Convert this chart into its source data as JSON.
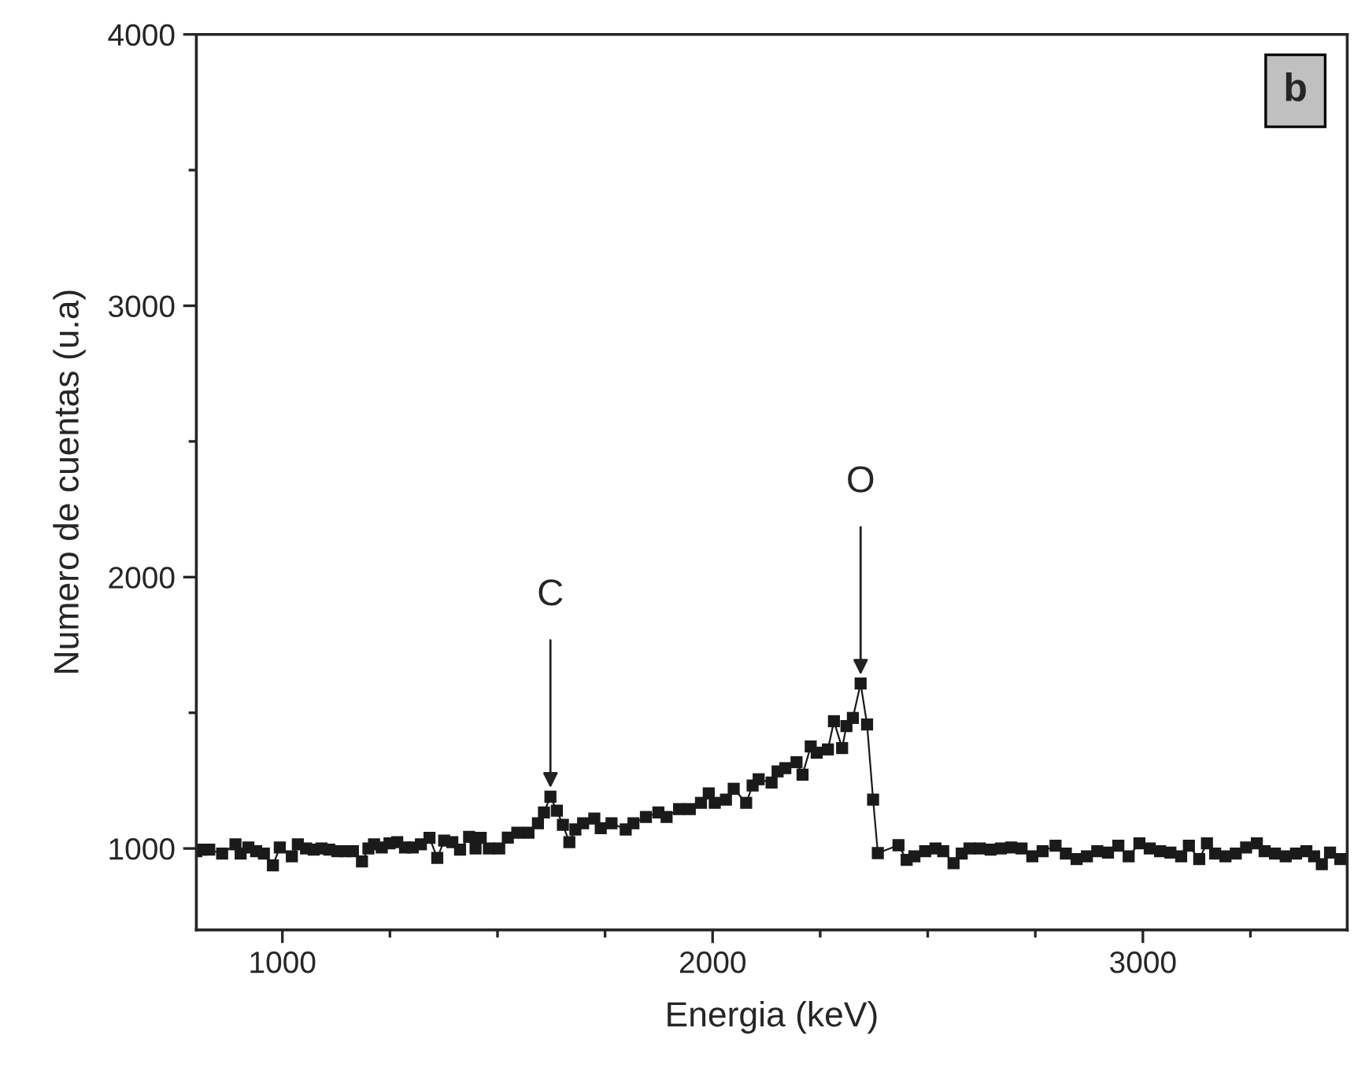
{
  "chart_data": {
    "type": "line",
    "xlabel": "Energia (keV)",
    "ylabel": "Numero de cuentas (u.a)",
    "x": [
      800,
      812,
      830,
      860,
      891,
      903,
      921,
      939,
      957,
      978,
      994,
      1022,
      1036,
      1055,
      1073,
      1091,
      1109,
      1128,
      1146,
      1164,
      1185,
      1200,
      1213,
      1231,
      1249,
      1267,
      1285,
      1303,
      1322,
      1342,
      1360,
      1376,
      1395,
      1413,
      1434,
      1449,
      1461,
      1480,
      1504,
      1524,
      1546,
      1572,
      1594,
      1608,
      1623,
      1638,
      1652,
      1667,
      1681,
      1699,
      1725,
      1740,
      1765,
      1798,
      1816,
      1845,
      1874,
      1893,
      1922,
      1947,
      1973,
      1991,
      2005,
      2031,
      2049,
      2078,
      2093,
      2107,
      2137,
      2151,
      2169,
      2195,
      2209,
      2228,
      2242,
      2268,
      2282,
      2301,
      2311,
      2326,
      2344,
      2359,
      2373,
      2384,
      2432,
      2451,
      2469,
      2494,
      2518,
      2536,
      2560,
      2579,
      2597,
      2621,
      2646,
      2670,
      2694,
      2718,
      2743,
      2767,
      2797,
      2821,
      2846,
      2870,
      2894,
      2919,
      2943,
      2967,
      2992,
      3016,
      3040,
      3064,
      3089,
      3107,
      3131,
      3149,
      3168,
      3192,
      3216,
      3240,
      3265,
      3283,
      3307,
      3332,
      3356,
      3380,
      3398,
      3416,
      3435,
      3459
    ],
    "series": [
      {
        "color": "#1a1a1a",
        "marker": "square",
        "line_style": "solid",
        "values": [
          990,
          996,
          996,
          981,
          1015,
          981,
          1004,
          990,
          981,
          938,
          1004,
          971,
          1015,
          1000,
          996,
          1000,
          996,
          990,
          990,
          990,
          952,
          1000,
          1015,
          1004,
          1019,
          1023,
          1004,
          1004,
          1015,
          1039,
          965,
          1029,
          1023,
          996,
          1043,
          1000,
          1039,
          1000,
          1000,
          1040,
          1058,
          1058,
          1093,
          1133,
          1191,
          1139,
          1087,
          1023,
          1070,
          1093,
          1110,
          1075,
          1093,
          1070,
          1093,
          1116,
          1133,
          1116,
          1145,
          1145,
          1168,
          1203,
          1168,
          1180,
          1220,
          1168,
          1232,
          1255,
          1243,
          1284,
          1296,
          1318,
          1272,
          1376,
          1353,
          1365,
          1469,
          1370,
          1451,
          1481,
          1608,
          1457,
          1180,
          983,
          1012,
          958,
          971,
          990,
          1000,
          990,
          946,
          981,
          1000,
          1000,
          996,
          1000,
          1004,
          1000,
          971,
          990,
          1010,
          981,
          961,
          971,
          990,
          985,
          1010,
          971,
          1019,
          1000,
          990,
          985,
          971,
          1010,
          961,
          1019,
          981,
          971,
          981,
          1004,
          1019,
          990,
          981,
          971,
          981,
          990,
          971,
          942,
          985,
          961
        ]
      }
    ],
    "xlim": [
      800,
      3475
    ],
    "ylim": [
      700,
      4000
    ],
    "xticks": [
      1000,
      {
        "value": 1250,
        "label": null
      },
      {
        "value": 1500,
        "label": null
      },
      {
        "value": 1750,
        "label": null
      },
      2000,
      {
        "value": 2250,
        "label": null
      },
      {
        "value": 2500,
        "label": null
      },
      {
        "value": 2750,
        "label": null
      },
      3000,
      {
        "value": 3250,
        "label": null
      }
    ],
    "yticks": [
      1000,
      {
        "value": 1500,
        "label": null
      },
      2000,
      {
        "value": 2500,
        "label": null
      },
      3000,
      {
        "value": 3500,
        "label": null
      },
      4000
    ],
    "annotations": [
      {
        "text": "C",
        "x": 1623,
        "y": 1191
      },
      {
        "text": "O",
        "x": 2344,
        "y": 1608
      },
      "b"
    ],
    "grid": false,
    "legend": false
  }
}
